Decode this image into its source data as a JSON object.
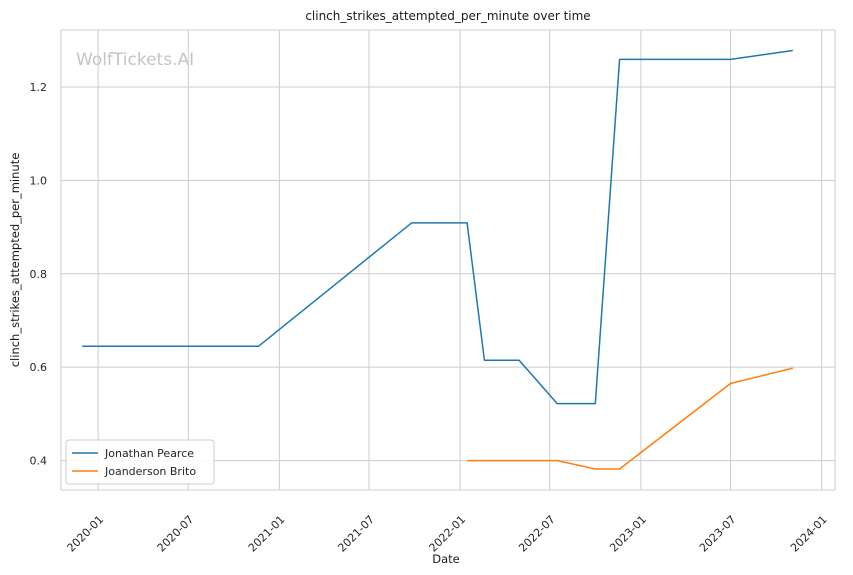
{
  "watermark": "WolfTickets.AI",
  "chart_data": {
    "type": "line",
    "title": "clinch_strikes_attempted_per_minute over time",
    "xlabel": "Date",
    "ylabel": "clinch_strikes_attempted_per_minute",
    "x_ticks": [
      "2020-01",
      "2020-07",
      "2021-01",
      "2021-07",
      "2022-01",
      "2022-07",
      "2023-01",
      "2023-07",
      "2024-01"
    ],
    "y_ticks": [
      "0.4",
      "0.6",
      "0.8",
      "1.0",
      "1.2"
    ],
    "xlim": [
      "2019-10-18",
      "2024-01-28"
    ],
    "ylim": [
      0.337,
      1.322
    ],
    "grid": true,
    "legend_position": "lower-left",
    "series": [
      {
        "name": "Jonathan Pearce",
        "color": "#1f77b4",
        "points": [
          {
            "x": "2019-11-30",
            "y": 0.645
          },
          {
            "x": "2020-11-20",
            "y": 0.645
          },
          {
            "x": "2021-09-25",
            "y": 0.909
          },
          {
            "x": "2022-01-15",
            "y": 0.909
          },
          {
            "x": "2022-02-19",
            "y": 0.615
          },
          {
            "x": "2022-04-30",
            "y": 0.615
          },
          {
            "x": "2022-07-16",
            "y": 0.522
          },
          {
            "x": "2022-10-01",
            "y": 0.522
          },
          {
            "x": "2022-11-19",
            "y": 1.259
          },
          {
            "x": "2023-07-01",
            "y": 1.259
          },
          {
            "x": "2023-11-04",
            "y": 1.278
          }
        ]
      },
      {
        "name": "Joanderson Brito",
        "color": "#ff7f0e",
        "points": [
          {
            "x": "2022-01-15",
            "y": 0.4
          },
          {
            "x": "2022-07-16",
            "y": 0.4
          },
          {
            "x": "2022-10-01",
            "y": 0.382
          },
          {
            "x": "2022-11-19",
            "y": 0.382
          },
          {
            "x": "2023-07-01",
            "y": 0.565
          },
          {
            "x": "2023-11-04",
            "y": 0.598
          }
        ]
      }
    ]
  }
}
